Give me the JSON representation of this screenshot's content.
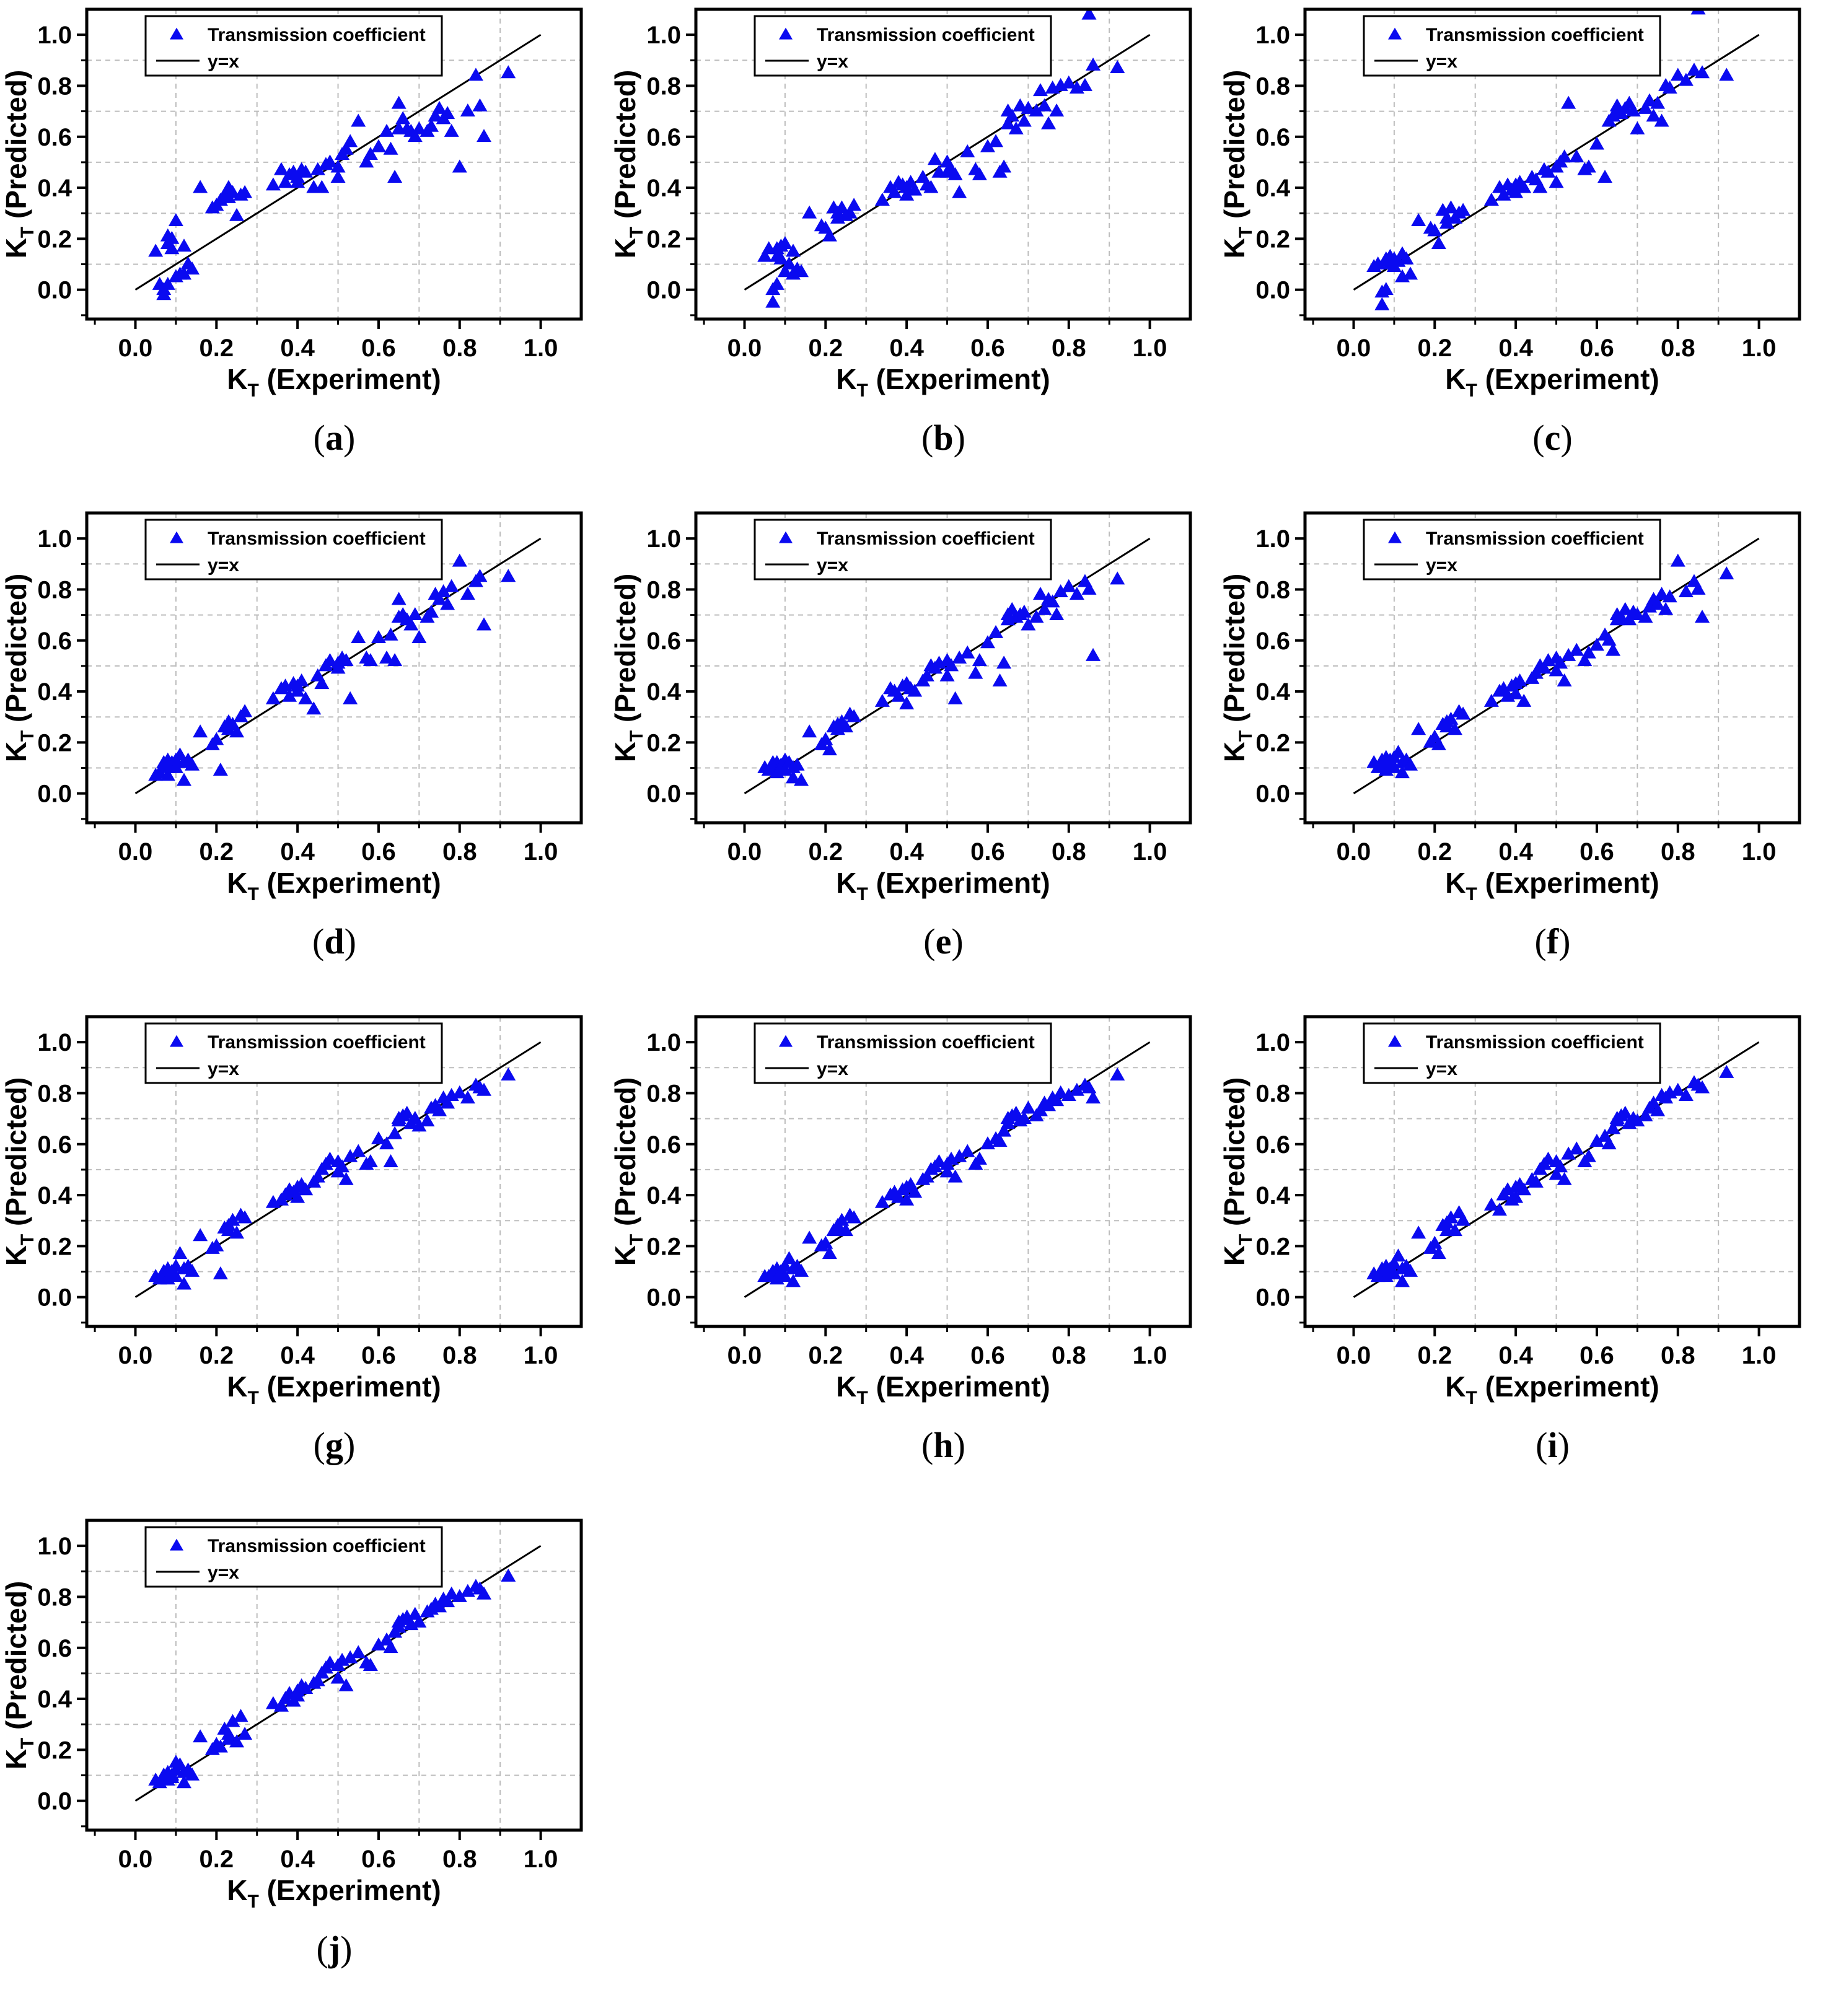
{
  "figure": {
    "caption_labels": [
      "a",
      "b",
      "c",
      "d",
      "e",
      "f",
      "g",
      "h",
      "i",
      "j"
    ],
    "axes": {
      "xlabel_base": "K",
      "xlabel_sub": "T",
      "xlabel_rest": " (Experiment)",
      "ylabel_base": "K",
      "ylabel_sub": "T",
      "ylabel_rest": " (Predicted)",
      "tick_labels": [
        "0.0",
        "0.2",
        "0.4",
        "0.6",
        "0.8",
        "1.0"
      ]
    },
    "legend": {
      "entries": [
        {
          "marker": "triangle-icon",
          "label": "Transmission coefficient"
        },
        {
          "marker": "line",
          "label": "y=x"
        }
      ]
    },
    "colors": {
      "marker": "#0a0af0",
      "reference_line": "#000000",
      "grid": "#bdbdbd",
      "frame": "#000000",
      "background": "#ffffff",
      "text": "#000000"
    }
  },
  "chart_data": {
    "type": "scatter",
    "title": "",
    "xlabel": "K_T (Experiment)",
    "ylabel": "K_T (Predicted)",
    "xlim": [
      -0.12,
      1.1
    ],
    "ylim": [
      -0.115,
      1.1
    ],
    "xticks": [
      0.0,
      0.2,
      0.4,
      0.6,
      0.8,
      1.0
    ],
    "yticks": [
      0.0,
      0.2,
      0.4,
      0.6,
      0.8,
      1.0
    ],
    "minor_tick_step": 0.1,
    "grid": "dashed lines at 0.1, 0.3, 0.5, 0.7, 0.9 on both axes",
    "legend_position": "top-left",
    "reference_line": {
      "label": "y=x",
      "from": [
        0,
        0
      ],
      "to": [
        1.0,
        1.0
      ]
    },
    "series_name": "Transmission coefficient",
    "x_experiment": [
      0.05,
      0.06,
      0.07,
      0.07,
      0.08,
      0.08,
      0.08,
      0.09,
      0.09,
      0.1,
      0.1,
      0.11,
      0.12,
      0.12,
      0.13,
      0.14,
      0.16,
      0.19,
      0.2,
      0.21,
      0.22,
      0.23,
      0.23,
      0.24,
      0.25,
      0.26,
      0.27,
      0.34,
      0.36,
      0.37,
      0.38,
      0.39,
      0.4,
      0.4,
      0.41,
      0.42,
      0.44,
      0.45,
      0.46,
      0.47,
      0.48,
      0.5,
      0.5,
      0.51,
      0.52,
      0.53,
      0.55,
      0.57,
      0.58,
      0.6,
      0.62,
      0.63,
      0.64,
      0.65,
      0.65,
      0.66,
      0.67,
      0.68,
      0.69,
      0.7,
      0.72,
      0.73,
      0.74,
      0.75,
      0.76,
      0.77,
      0.78,
      0.8,
      0.82,
      0.84,
      0.85,
      0.86,
      0.92
    ],
    "subplots": [
      {
        "label": "a",
        "y_predicted": [
          0.15,
          0.02,
          0.0,
          -0.02,
          0.21,
          0.18,
          0.02,
          0.2,
          0.16,
          0.27,
          0.05,
          0.06,
          0.17,
          0.06,
          0.1,
          0.08,
          0.4,
          0.32,
          0.33,
          0.35,
          0.37,
          0.4,
          0.36,
          0.38,
          0.29,
          0.37,
          0.38,
          0.41,
          0.47,
          0.42,
          0.45,
          0.46,
          0.44,
          0.42,
          0.47,
          0.46,
          0.4,
          0.47,
          0.4,
          0.49,
          0.5,
          0.44,
          0.48,
          0.53,
          0.55,
          0.58,
          0.66,
          0.5,
          0.53,
          0.56,
          0.62,
          0.55,
          0.44,
          0.73,
          0.63,
          0.67,
          0.63,
          0.62,
          0.6,
          0.63,
          0.62,
          0.64,
          0.68,
          0.71,
          0.67,
          0.69,
          0.62,
          0.48,
          0.7,
          0.84,
          0.72,
          0.6,
          0.85
        ]
      },
      {
        "label": "b",
        "y_predicted": [
          0.13,
          0.16,
          0.0,
          -0.05,
          0.13,
          0.16,
          0.02,
          0.17,
          0.12,
          0.18,
          0.07,
          0.1,
          0.15,
          0.06,
          0.08,
          0.07,
          0.3,
          0.25,
          0.24,
          0.21,
          0.32,
          0.3,
          0.28,
          0.32,
          0.29,
          0.3,
          0.33,
          0.35,
          0.4,
          0.38,
          0.42,
          0.41,
          0.4,
          0.37,
          0.42,
          0.39,
          0.44,
          0.41,
          0.4,
          0.51,
          0.46,
          0.5,
          0.46,
          0.47,
          0.45,
          0.38,
          0.54,
          0.47,
          0.45,
          0.56,
          0.58,
          0.46,
          0.48,
          0.7,
          0.65,
          0.68,
          0.63,
          0.72,
          0.66,
          0.71,
          0.7,
          0.78,
          0.72,
          0.65,
          0.79,
          0.7,
          0.8,
          0.81,
          0.79,
          0.8,
          1.08,
          0.88,
          0.87
        ]
      },
      {
        "label": "c",
        "y_predicted": [
          0.09,
          0.1,
          -0.01,
          -0.06,
          0.12,
          0.11,
          0.0,
          0.13,
          0.1,
          0.12,
          0.09,
          0.11,
          0.14,
          0.05,
          0.12,
          0.06,
          0.27,
          0.24,
          0.23,
          0.18,
          0.31,
          0.28,
          0.26,
          0.32,
          0.28,
          0.3,
          0.31,
          0.35,
          0.4,
          0.37,
          0.41,
          0.39,
          0.41,
          0.38,
          0.42,
          0.4,
          0.44,
          0.43,
          0.4,
          0.47,
          0.46,
          0.42,
          0.48,
          0.5,
          0.52,
          0.73,
          0.52,
          0.47,
          0.48,
          0.57,
          0.44,
          0.66,
          0.68,
          0.7,
          0.72,
          0.69,
          0.71,
          0.73,
          0.7,
          0.63,
          0.71,
          0.74,
          0.68,
          0.73,
          0.66,
          0.8,
          0.79,
          0.84,
          0.82,
          0.86,
          1.1,
          0.85,
          0.84
        ]
      },
      {
        "label": "d",
        "y_predicted": [
          0.07,
          0.08,
          0.12,
          0.11,
          0.13,
          0.1,
          0.07,
          0.12,
          0.11,
          0.13,
          0.1,
          0.15,
          0.12,
          0.05,
          0.13,
          0.11,
          0.24,
          0.19,
          0.21,
          0.09,
          0.26,
          0.25,
          0.28,
          0.27,
          0.24,
          0.3,
          0.32,
          0.37,
          0.41,
          0.42,
          0.38,
          0.43,
          0.42,
          0.4,
          0.44,
          0.37,
          0.33,
          0.46,
          0.43,
          0.5,
          0.52,
          0.49,
          0.51,
          0.53,
          0.52,
          0.37,
          0.61,
          0.53,
          0.52,
          0.61,
          0.53,
          0.62,
          0.52,
          0.76,
          0.69,
          0.7,
          0.68,
          0.66,
          0.7,
          0.61,
          0.69,
          0.71,
          0.78,
          0.76,
          0.79,
          0.74,
          0.81,
          0.91,
          0.78,
          0.83,
          0.85,
          0.66,
          0.85
        ]
      },
      {
        "label": "e",
        "y_predicted": [
          0.1,
          0.09,
          0.11,
          0.12,
          0.1,
          0.12,
          0.08,
          0.11,
          0.1,
          0.13,
          0.09,
          0.12,
          0.1,
          0.06,
          0.11,
          0.05,
          0.24,
          0.19,
          0.21,
          0.17,
          0.26,
          0.25,
          0.27,
          0.28,
          0.26,
          0.31,
          0.3,
          0.36,
          0.41,
          0.4,
          0.38,
          0.42,
          0.43,
          0.35,
          0.41,
          0.4,
          0.44,
          0.46,
          0.5,
          0.49,
          0.51,
          0.46,
          0.52,
          0.5,
          0.37,
          0.53,
          0.55,
          0.47,
          0.52,
          0.59,
          0.63,
          0.44,
          0.51,
          0.7,
          0.68,
          0.72,
          0.69,
          0.7,
          0.71,
          0.66,
          0.69,
          0.78,
          0.72,
          0.76,
          0.75,
          0.7,
          0.79,
          0.81,
          0.78,
          0.83,
          0.8,
          0.54,
          0.84
        ]
      },
      {
        "label": "f",
        "y_predicted": [
          0.12,
          0.1,
          0.13,
          0.11,
          0.14,
          0.12,
          0.09,
          0.13,
          0.11,
          0.14,
          0.1,
          0.16,
          0.12,
          0.08,
          0.13,
          0.11,
          0.25,
          0.2,
          0.22,
          0.19,
          0.27,
          0.26,
          0.28,
          0.29,
          0.25,
          0.32,
          0.31,
          0.36,
          0.4,
          0.41,
          0.38,
          0.42,
          0.43,
          0.39,
          0.44,
          0.36,
          0.45,
          0.47,
          0.5,
          0.49,
          0.52,
          0.48,
          0.53,
          0.51,
          0.44,
          0.54,
          0.56,
          0.52,
          0.55,
          0.58,
          0.62,
          0.6,
          0.56,
          0.68,
          0.7,
          0.69,
          0.72,
          0.68,
          0.71,
          0.7,
          0.69,
          0.73,
          0.76,
          0.74,
          0.78,
          0.72,
          0.77,
          0.91,
          0.79,
          0.83,
          0.8,
          0.69,
          0.86
        ]
      },
      {
        "label": "g",
        "y_predicted": [
          0.08,
          0.07,
          0.09,
          0.1,
          0.09,
          0.11,
          0.07,
          0.1,
          0.09,
          0.12,
          0.08,
          0.17,
          0.11,
          0.05,
          0.12,
          0.1,
          0.24,
          0.19,
          0.2,
          0.09,
          0.27,
          0.26,
          0.28,
          0.3,
          0.25,
          0.32,
          0.31,
          0.37,
          0.38,
          0.4,
          0.42,
          0.41,
          0.43,
          0.39,
          0.44,
          0.42,
          0.45,
          0.47,
          0.5,
          0.52,
          0.54,
          0.49,
          0.53,
          0.51,
          0.46,
          0.55,
          0.57,
          0.52,
          0.53,
          0.62,
          0.6,
          0.53,
          0.64,
          0.7,
          0.69,
          0.71,
          0.72,
          0.68,
          0.7,
          0.67,
          0.69,
          0.74,
          0.75,
          0.73,
          0.78,
          0.76,
          0.79,
          0.8,
          0.78,
          0.83,
          0.82,
          0.81,
          0.87
        ]
      },
      {
        "label": "h",
        "y_predicted": [
          0.08,
          0.08,
          0.1,
          0.09,
          0.1,
          0.11,
          0.07,
          0.1,
          0.09,
          0.12,
          0.08,
          0.15,
          0.11,
          0.06,
          0.12,
          0.1,
          0.23,
          0.2,
          0.21,
          0.17,
          0.26,
          0.27,
          0.28,
          0.3,
          0.26,
          0.32,
          0.31,
          0.37,
          0.4,
          0.41,
          0.39,
          0.42,
          0.43,
          0.38,
          0.44,
          0.41,
          0.46,
          0.47,
          0.5,
          0.51,
          0.53,
          0.49,
          0.52,
          0.54,
          0.47,
          0.55,
          0.57,
          0.52,
          0.54,
          0.6,
          0.62,
          0.61,
          0.65,
          0.7,
          0.68,
          0.71,
          0.72,
          0.69,
          0.7,
          0.74,
          0.71,
          0.73,
          0.76,
          0.75,
          0.78,
          0.77,
          0.8,
          0.79,
          0.81,
          0.83,
          0.82,
          0.78,
          0.87
        ]
      },
      {
        "label": "i",
        "y_predicted": [
          0.09,
          0.08,
          0.1,
          0.11,
          0.09,
          0.12,
          0.08,
          0.11,
          0.1,
          0.13,
          0.09,
          0.16,
          0.11,
          0.06,
          0.12,
          0.1,
          0.25,
          0.19,
          0.21,
          0.17,
          0.28,
          0.26,
          0.29,
          0.31,
          0.26,
          0.33,
          0.3,
          0.36,
          0.34,
          0.4,
          0.42,
          0.38,
          0.43,
          0.39,
          0.44,
          0.42,
          0.46,
          0.45,
          0.5,
          0.52,
          0.54,
          0.48,
          0.53,
          0.51,
          0.46,
          0.56,
          0.58,
          0.53,
          0.55,
          0.61,
          0.63,
          0.6,
          0.66,
          0.7,
          0.69,
          0.71,
          0.72,
          0.68,
          0.7,
          0.69,
          0.71,
          0.74,
          0.76,
          0.73,
          0.79,
          0.78,
          0.8,
          0.81,
          0.79,
          0.84,
          0.83,
          0.82,
          0.88
        ]
      },
      {
        "label": "j",
        "y_predicted": [
          0.08,
          0.07,
          0.09,
          0.1,
          0.09,
          0.11,
          0.08,
          0.1,
          0.09,
          0.12,
          0.15,
          0.14,
          0.11,
          0.07,
          0.12,
          0.1,
          0.25,
          0.2,
          0.22,
          0.21,
          0.28,
          0.26,
          0.24,
          0.31,
          0.23,
          0.33,
          0.26,
          0.38,
          0.37,
          0.4,
          0.42,
          0.39,
          0.43,
          0.41,
          0.45,
          0.44,
          0.46,
          0.47,
          0.5,
          0.52,
          0.54,
          0.48,
          0.53,
          0.55,
          0.45,
          0.56,
          0.58,
          0.54,
          0.53,
          0.61,
          0.63,
          0.6,
          0.66,
          0.7,
          0.68,
          0.71,
          0.72,
          0.69,
          0.73,
          0.7,
          0.74,
          0.75,
          0.77,
          0.76,
          0.79,
          0.78,
          0.81,
          0.8,
          0.82,
          0.84,
          0.83,
          0.81,
          0.88
        ]
      }
    ]
  }
}
